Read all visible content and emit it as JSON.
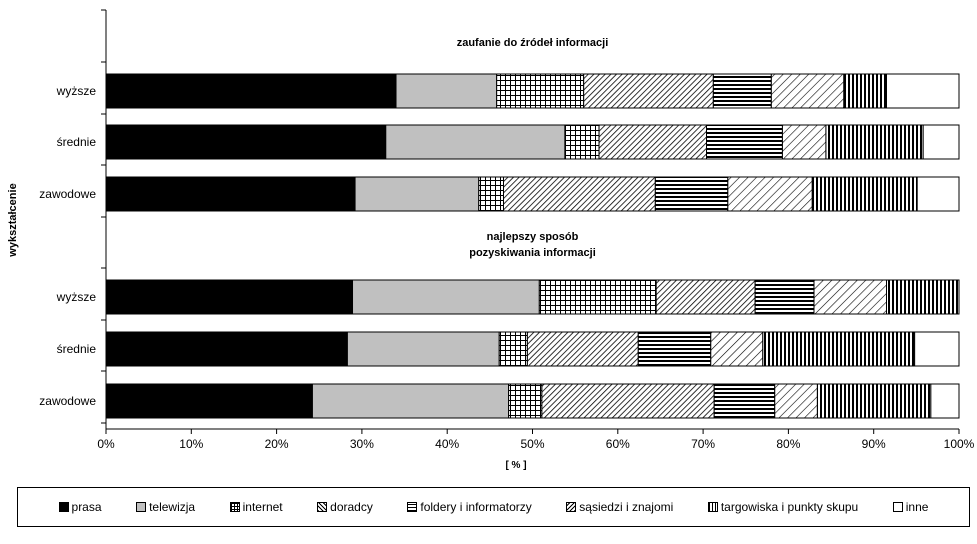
{
  "chart_data": {
    "type": "bar",
    "orientation": "horizontal",
    "stacked": "100%",
    "ylabel": "wykształcenie",
    "xlabel": "[ % ]",
    "xlim": [
      0,
      100
    ],
    "x_ticks": [
      "0%",
      "10%",
      "20%",
      "30%",
      "40%",
      "50%",
      "60%",
      "70%",
      "80%",
      "90%",
      "100%"
    ],
    "grid": false,
    "legend_position": "bottom",
    "series": [
      {
        "name": "prasa",
        "pattern": "solid-black"
      },
      {
        "name": "telewizja",
        "pattern": "solid-gray"
      },
      {
        "name": "internet",
        "pattern": "grid"
      },
      {
        "name": "doradcy",
        "pattern": "diagonal-dense"
      },
      {
        "name": "foldery i informatorzy",
        "pattern": "horizontal-lines"
      },
      {
        "name": "sąsiedzi i znajomi",
        "pattern": "diagonal-sparse"
      },
      {
        "name": "targowiska i punkty skupu",
        "pattern": "vertical-lines"
      },
      {
        "name": "inne",
        "pattern": "white"
      }
    ],
    "groups": [
      {
        "title": "zaufanie do źródeł informacji",
        "categories": [
          "wyższe",
          "średnie",
          "zawodowe"
        ],
        "values": [
          [
            34.0,
            11.8,
            10.2,
            15.2,
            6.8,
            8.5,
            5.0,
            8.5
          ],
          [
            32.8,
            21.0,
            4.0,
            12.6,
            8.9,
            5.1,
            11.4,
            4.2
          ],
          [
            29.2,
            14.5,
            2.9,
            17.8,
            8.5,
            9.9,
            12.3,
            4.9
          ]
        ]
      },
      {
        "title": "najlepszy sposób\npozyskiwania informacji",
        "categories": [
          "wyższe",
          "średnie",
          "zawodowe"
        ],
        "values": [
          [
            28.9,
            21.9,
            13.7,
            11.6,
            6.9,
            8.5,
            8.5,
            0.0
          ],
          [
            28.3,
            17.8,
            3.3,
            13.0,
            8.5,
            6.1,
            17.8,
            5.2
          ],
          [
            24.2,
            23.0,
            3.9,
            20.2,
            7.1,
            5.0,
            13.3,
            3.3
          ]
        ]
      }
    ]
  }
}
